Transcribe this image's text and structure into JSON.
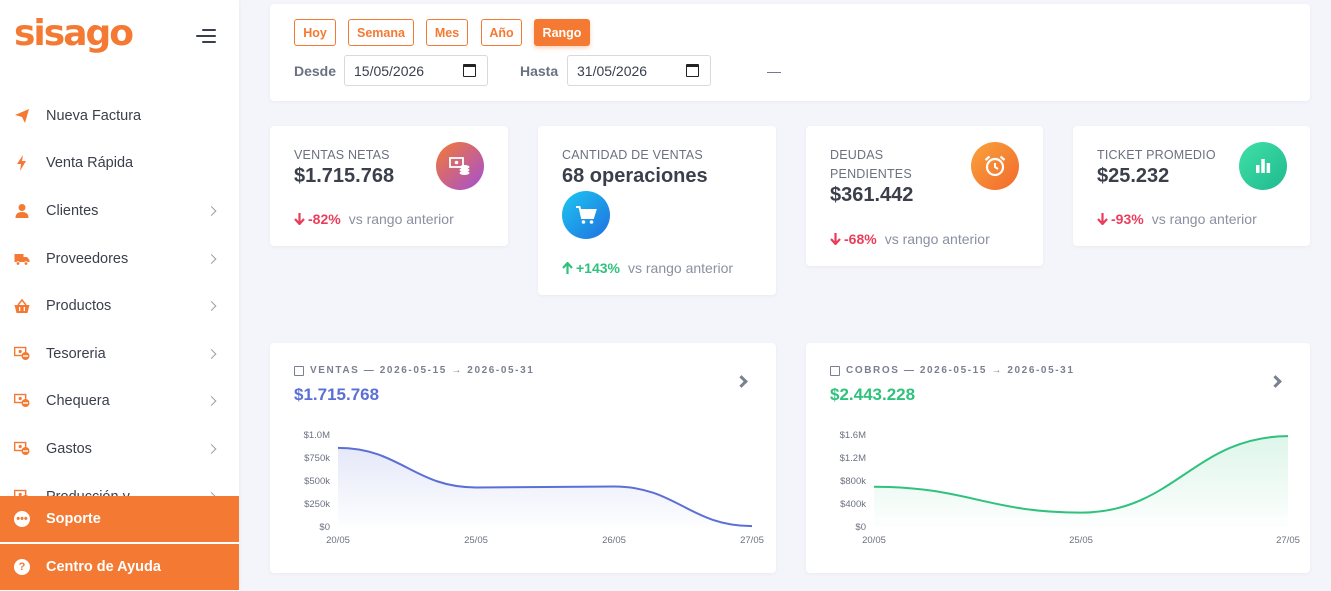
{
  "brand": {
    "logo": "sisago",
    "accent": "#f47a33"
  },
  "sidebar": {
    "items": [
      {
        "label": "Nueva Factura",
        "icon": "paper-plane-icon",
        "has_submenu": false
      },
      {
        "label": "Venta Rápida",
        "icon": "bolt-icon",
        "has_submenu": false
      },
      {
        "label": "Clientes",
        "icon": "user-icon",
        "has_submenu": true
      },
      {
        "label": "Proveedores",
        "icon": "truck-icon",
        "has_submenu": true
      },
      {
        "label": "Productos",
        "icon": "basket-icon",
        "has_submenu": true
      },
      {
        "label": "Tesoreria",
        "icon": "cash-icon",
        "has_submenu": true
      },
      {
        "label": "Chequera",
        "icon": "cash-icon",
        "has_submenu": true
      },
      {
        "label": "Gastos",
        "icon": "cash-icon",
        "has_submenu": true
      },
      {
        "label": "Producción y",
        "icon": "cash-icon",
        "has_submenu": true
      }
    ],
    "support_label": "Soporte",
    "help_label": "Centro de Ayuda"
  },
  "filters": {
    "ranges": [
      "Hoy",
      "Semana",
      "Mes",
      "Año",
      "Rango"
    ],
    "active_range": "Rango",
    "from_label": "Desde",
    "from_value": "15/05/2026",
    "separator": "—",
    "to_label": "Hasta",
    "to_value": "31/05/2026"
  },
  "kpis": {
    "ventas": {
      "title": "VENTAS NETAS",
      "value": "$1.715.768",
      "change": "-82%",
      "direction": "down",
      "vs": "vs rango anterior",
      "icon": "cash-stack-icon"
    },
    "cantidad": {
      "title": "CANTIDAD DE VENTAS",
      "value": "68 operaciones",
      "change": "+143%",
      "direction": "up",
      "vs": "vs rango anterior",
      "icon": "cart-icon"
    },
    "deudas": {
      "title_line1": "DEUDAS",
      "title_line2": "PENDIENTES",
      "value": "$361.442",
      "change": "-68%",
      "direction": "down",
      "vs": "vs rango anterior",
      "icon": "alarm-clock-icon"
    },
    "ticket": {
      "title": "TICKET PROMEDIO",
      "value": "$25.232",
      "change": "-93%",
      "direction": "down",
      "vs": "vs rango anterior",
      "icon": "bar-chart-icon"
    }
  },
  "chart_data": [
    {
      "type": "area",
      "title": "VENTAS — 2026-05-15 → 2026-05-31",
      "amount": "$1.715.768",
      "color": "#5b6fd6",
      "categories": [
        "20/05",
        "25/05",
        "26/05",
        "27/05"
      ],
      "values": [
        860000,
        430000,
        440000,
        10000
      ],
      "yticks": [
        "$0",
        "$250k",
        "$500k",
        "$750k",
        "$1.0M"
      ],
      "ylim": [
        0,
        1000000
      ]
    },
    {
      "type": "area",
      "title": "COBROS — 2026-05-15 → 2026-05-31",
      "amount": "$2.443.228",
      "color": "#2fc27d",
      "categories": [
        "20/05",
        "25/05",
        "27/05"
      ],
      "values": [
        700000,
        250000,
        1580000
      ],
      "yticks": [
        "$0",
        "$400k",
        "$800k",
        "$1.2M",
        "$1.6M"
      ],
      "ylim": [
        0,
        1600000
      ]
    }
  ]
}
